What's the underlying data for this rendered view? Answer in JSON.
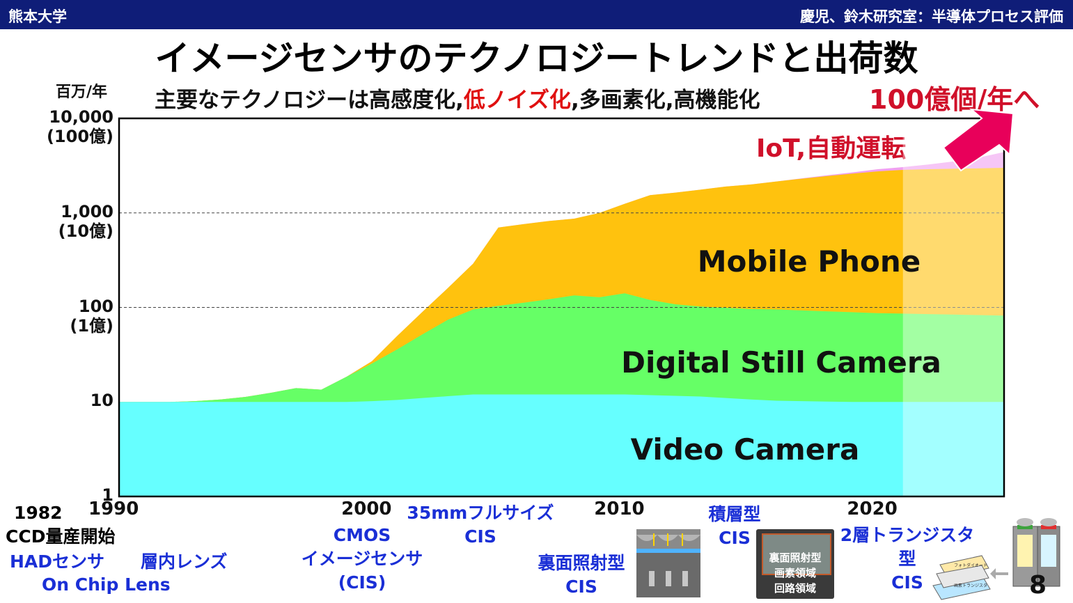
{
  "header": {
    "left": "熊本大学",
    "right": "慶児、鈴木研究室：半導体プロセス評価"
  },
  "title": "イメージセンサのテクノロジートレンドと出荷数",
  "units_label": "百万/年",
  "subtitle": {
    "part1": "主要なテクノロジーは高感度化,",
    "red": "低ノイズ化",
    "part2": ",多画素化,高機能化"
  },
  "future_note": "100億個/年へ",
  "iot_label": "IoT,自動運転",
  "page_number": "8",
  "colors": {
    "video": "#66ffff",
    "dsc": "#66ff66",
    "mobile": "#ffc20e",
    "iot": "#f0a0f0",
    "forecast_overlay": "#ffffff",
    "arrow": "#e8005a",
    "header": "#0f1d78"
  },
  "chart_data": {
    "type": "area",
    "stacked": true,
    "y_scale": "log",
    "ylim": [
      1,
      10000
    ],
    "xlim": [
      1990,
      2025
    ],
    "grid": "dashed lines at 1,000 and 100",
    "yticks": [
      {
        "value": 10000,
        "label": "10,000",
        "sub": "(100億)"
      },
      {
        "value": 1000,
        "label": "1,000",
        "sub": "(10億)"
      },
      {
        "value": 100,
        "label": "100",
        "sub": "(1億)"
      },
      {
        "value": 10,
        "label": "10",
        "sub": ""
      },
      {
        "value": 1,
        "label": "1",
        "sub": ""
      }
    ],
    "xticks": [
      {
        "value": 1990,
        "label": "1990"
      },
      {
        "value": 2000,
        "label": "2000"
      },
      {
        "value": 2010,
        "label": "2010"
      },
      {
        "value": 2020,
        "label": "2020"
      }
    ],
    "forecast_from": 2021,
    "x": [
      1990,
      1991,
      1992,
      1993,
      1994,
      1995,
      1996,
      1997,
      1998,
      1999,
      2000,
      2001,
      2002,
      2003,
      2004,
      2005,
      2006,
      2007,
      2008,
      2009,
      2010,
      2011,
      2012,
      2013,
      2014,
      2015,
      2016,
      2017,
      2018,
      2019,
      2020,
      2021,
      2022,
      2023,
      2024,
      2025
    ],
    "series": [
      {
        "name": "Video Camera",
        "values": [
          10,
          10,
          10,
          10,
          10,
          10,
          10,
          10,
          10,
          10,
          10.2,
          10.5,
          11,
          11.5,
          12,
          12,
          12,
          12,
          12,
          12,
          12,
          11.8,
          11.6,
          11.4,
          11,
          10.6,
          10.3,
          10.2,
          10.1,
          10,
          10,
          10,
          10,
          10,
          10,
          10
        ]
      },
      {
        "name": "Digital Still Camera",
        "values": [
          10,
          10,
          10,
          10.2,
          10.6,
          11.3,
          12.5,
          14,
          13.5,
          18.5,
          25.5,
          36,
          52,
          74,
          95,
          104,
          112,
          122,
          134,
          128,
          141,
          120,
          108,
          102,
          99,
          96,
          95,
          93,
          91,
          89,
          87,
          86,
          85,
          84,
          83,
          82
        ]
      },
      {
        "name": "Mobile Phone",
        "values": [
          10,
          10,
          10,
          10.2,
          10.6,
          11.3,
          12.5,
          14,
          13.5,
          18.5,
          27,
          50,
          90,
          160,
          290,
          700,
          760,
          820,
          870,
          1000,
          1250,
          1540,
          1640,
          1760,
          1900,
          2000,
          2150,
          2300,
          2450,
          2600,
          2750,
          2850,
          2900,
          2930,
          2960,
          3000
        ]
      },
      {
        "name": "IoT",
        "values": [
          10,
          10,
          10,
          10.2,
          10.6,
          11.3,
          12.5,
          14,
          13.5,
          18.5,
          27,
          50,
          90,
          160,
          290,
          700,
          760,
          820,
          870,
          1000,
          1250,
          1540,
          1640,
          1760,
          1900,
          2000,
          2150,
          2320,
          2500,
          2680,
          2900,
          3050,
          3250,
          3500,
          3850,
          4400
        ]
      }
    ],
    "series_labels": [
      "Video Camera",
      "Digital Still Camera",
      "Mobile Phone"
    ]
  },
  "timeline": {
    "year_1982": "1982",
    "ccd": "CCD量産開始",
    "had": "HADセンサ",
    "layer_lens": "層内レンズ",
    "on_chip": "On Chip Lens",
    "cmos_1": "CMOS",
    "cmos_2": "イメージセンサ",
    "cmos_3": "(CIS)",
    "fullsize_1": "35mmフルサイズ",
    "fullsize_2": "CIS",
    "bsi_1": "裏面照射型",
    "bsi_2": "CIS",
    "stacked_1": "積層型",
    "stacked_2": "CIS",
    "stack_img_1": "裏面照射型",
    "stack_img_2": "画素領域",
    "stack_img_3": "回路領域",
    "twolayer_1": "2層トランジスタ型",
    "twolayer_2": "CIS",
    "twolayer_img_1": "フォトダイオード",
    "twolayer_img_2": "画素トランジスタ"
  }
}
